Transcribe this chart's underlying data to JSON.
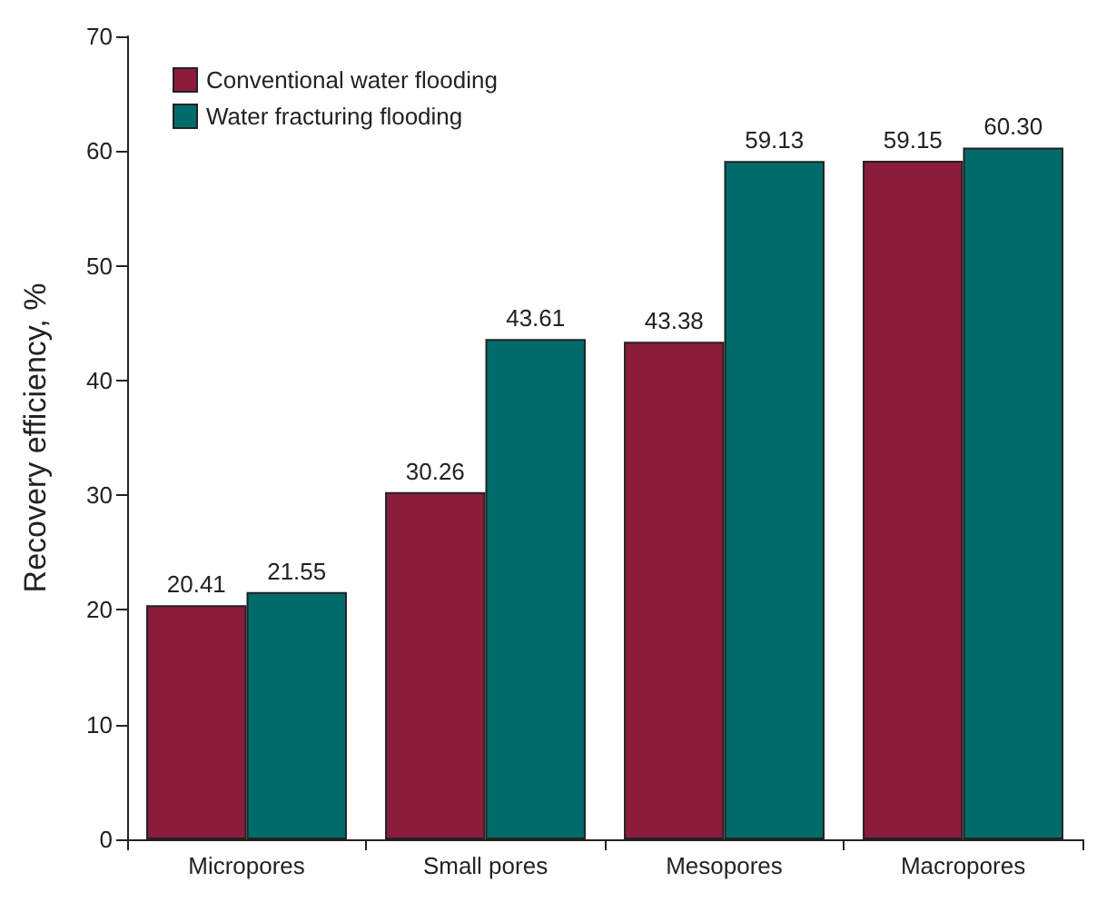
{
  "chart_data": {
    "type": "bar",
    "ylabel": "Recovery efficiency, %",
    "categories": [
      "Micropores",
      "Small pores",
      "Mesopores",
      "Macropores"
    ],
    "series": [
      {
        "name": "Conventional water flooding",
        "color": "#8b1c3b",
        "values": [
          20.41,
          30.26,
          43.38,
          59.15
        ],
        "value_labels": [
          "20.41",
          "30.26",
          "43.38",
          "59.15"
        ]
      },
      {
        "name": "Water fracturing flooding",
        "color": "#006b6b",
        "values": [
          21.55,
          43.61,
          59.13,
          60.3
        ],
        "value_labels": [
          "21.55",
          "43.61",
          "59.13",
          "60.30"
        ]
      }
    ],
    "ylim": [
      0,
      70
    ],
    "yticks": [
      0,
      10,
      20,
      30,
      40,
      50,
      60,
      70
    ],
    "grid": false,
    "legend": "top left"
  }
}
